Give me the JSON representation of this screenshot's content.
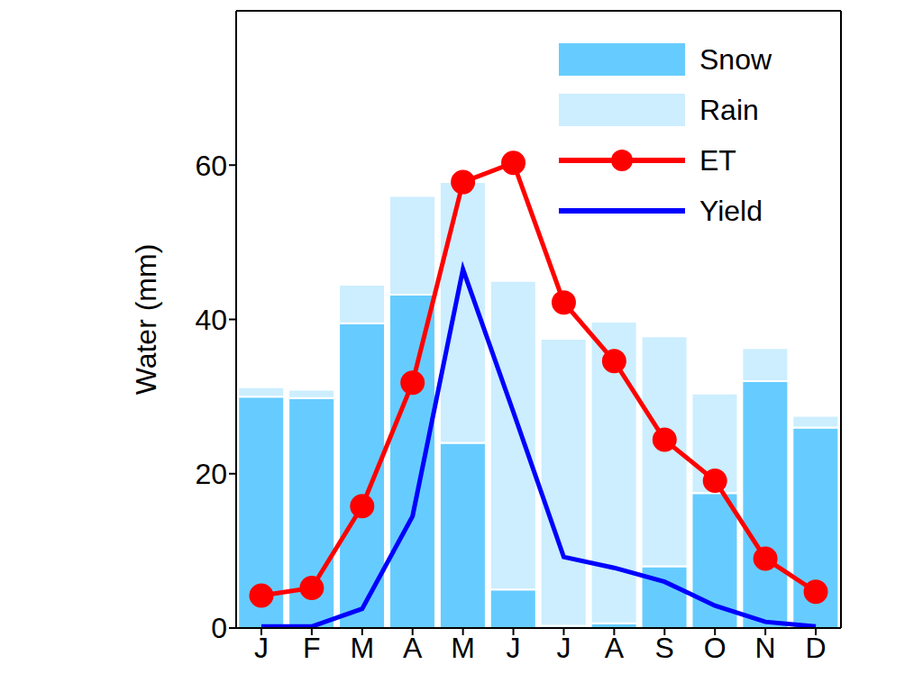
{
  "chart_data": {
    "type": "bar",
    "categories": [
      "J",
      "F",
      "M",
      "A",
      "M",
      "J",
      "J",
      "A",
      "S",
      "O",
      "N",
      "D"
    ],
    "y_label": "Water (mm)",
    "ylim": [
      0,
      80
    ],
    "yticks": [
      0,
      20,
      40,
      60
    ],
    "stacked": true,
    "legend": "upper right",
    "grid": false,
    "series": [
      {
        "name": "Snow",
        "type": "bar",
        "color": "#66ccff",
        "values": [
          30,
          29.8,
          39.5,
          43.2,
          24,
          5,
          0.3,
          0.6,
          8,
          17.5,
          32,
          26
        ]
      },
      {
        "name": "Rain",
        "type": "bar",
        "color": "#cceeff",
        "values": [
          1.2,
          1.1,
          5,
          12.8,
          33.8,
          40,
          37.2,
          39.1,
          29.8,
          12.9,
          4.3,
          1.5
        ]
      },
      {
        "name": "ET",
        "type": "line",
        "color": "#ff0000",
        "marker": "circle",
        "values": [
          4.2,
          5.2,
          15.8,
          31.8,
          57.8,
          60.3,
          42.2,
          34.6,
          24.4,
          19.1,
          9,
          4.7
        ]
      },
      {
        "name": "Yield",
        "type": "line",
        "color": "#0000ff",
        "values": [
          0.2,
          0.2,
          2.5,
          14.5,
          46.5,
          28,
          9.2,
          7.8,
          6,
          2.9,
          0.8,
          0.2
        ]
      }
    ]
  }
}
